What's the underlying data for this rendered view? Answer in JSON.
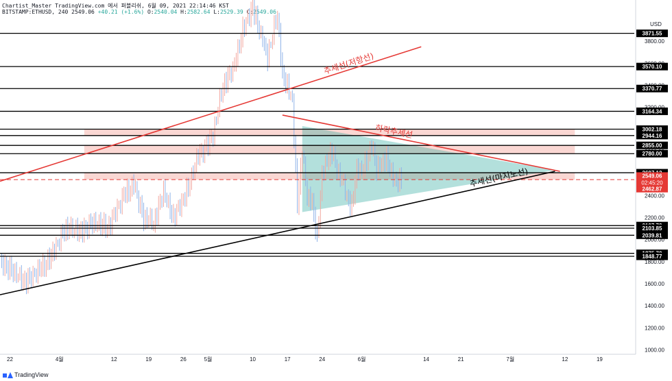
{
  "header": {
    "line1": "Chartist_Master TradingView.com 에서 퍼블리쉬, 6월 09, 2021 22:14:46 KST",
    "symbol": "BITSTAMP:ETHUSD, 240",
    "last": "2549.06",
    "change": "+40.21 (+1.6%)",
    "o_label": "O:",
    "o": "2540.04",
    "h_label": "H:",
    "h": "2582.64",
    "l_label": "L:",
    "l": "2529.39",
    "c_label": "C:",
    "c": "2549.06"
  },
  "footer": {
    "brand": "TradingView"
  },
  "chart_data": {
    "type": "candlestick",
    "currency": "USD",
    "ylim": [
      960,
      4000
    ],
    "yticks": [
      1000,
      1200,
      1400,
      1600,
      1800,
      2000,
      2200,
      2400,
      2600,
      2800,
      3000,
      3200,
      3400,
      3600,
      3800
    ],
    "ytick_labels": [
      "1000.00",
      "1200.00",
      "1400.00",
      "1600.00",
      "1800.00",
      "2000.00",
      "2200.00",
      "2400.00",
      "2600.00",
      "2800.00",
      "3000.00",
      "3200.00",
      "3400.00",
      "3600.00",
      "3800.00"
    ],
    "xlim": [
      "2021-03-20",
      "2021-07-26"
    ],
    "xticks": [
      {
        "date": "2021-03-22",
        "label": "22"
      },
      {
        "date": "2021-04-01",
        "label": "4월"
      },
      {
        "date": "2021-04-12",
        "label": "12"
      },
      {
        "date": "2021-04-19",
        "label": "19"
      },
      {
        "date": "2021-04-26",
        "label": "26"
      },
      {
        "date": "2021-05-01",
        "label": "5월"
      },
      {
        "date": "2021-05-10",
        "label": "10"
      },
      {
        "date": "2021-05-17",
        "label": "17"
      },
      {
        "date": "2021-05-24",
        "label": "24"
      },
      {
        "date": "2021-06-01",
        "label": "6월"
      },
      {
        "date": "2021-06-14",
        "label": "14"
      },
      {
        "date": "2021-06-21",
        "label": "21"
      },
      {
        "date": "2021-07-01",
        "label": "7월"
      },
      {
        "date": "2021-07-12",
        "label": "12"
      },
      {
        "date": "2021-07-19",
        "label": "19"
      }
    ],
    "price_series": [
      [
        "2021-03-20",
        1810
      ],
      [
        "2021-03-23",
        1700
      ],
      [
        "2021-03-25",
        1610
      ],
      [
        "2021-03-28",
        1720
      ],
      [
        "2021-03-31",
        1890
      ],
      [
        "2021-04-02",
        2100
      ],
      [
        "2021-04-05",
        2080
      ],
      [
        "2021-04-08",
        2150
      ],
      [
        "2021-04-11",
        2120
      ],
      [
        "2021-04-14",
        2400
      ],
      [
        "2021-04-16",
        2500
      ],
      [
        "2021-04-18",
        2200
      ],
      [
        "2021-04-20",
        2150
      ],
      [
        "2021-04-22",
        2450
      ],
      [
        "2021-04-24",
        2200
      ],
      [
        "2021-04-26",
        2350
      ],
      [
        "2021-04-29",
        2750
      ],
      [
        "2021-05-02",
        2950
      ],
      [
        "2021-05-04",
        3400
      ],
      [
        "2021-05-06",
        3550
      ],
      [
        "2021-05-08",
        3900
      ],
      [
        "2021-05-10",
        4100
      ],
      [
        "2021-05-12",
        3800
      ],
      [
        "2021-05-13",
        3650
      ],
      [
        "2021-05-15",
        4050
      ],
      [
        "2021-05-16",
        3500
      ],
      [
        "2021-05-17",
        3400
      ],
      [
        "2021-05-18",
        3250
      ],
      [
        "2021-05-19",
        2300
      ],
      [
        "2021-05-20",
        2800
      ],
      [
        "2021-05-21",
        2400
      ],
      [
        "2021-05-22",
        2350
      ],
      [
        "2021-05-23",
        2000
      ],
      [
        "2021-05-24",
        2600
      ],
      [
        "2021-05-25",
        2700
      ],
      [
        "2021-05-26",
        2800
      ],
      [
        "2021-05-27",
        2650
      ],
      [
        "2021-05-29",
        2400
      ],
      [
        "2021-05-30",
        2300
      ],
      [
        "2021-05-31",
        2650
      ],
      [
        "2021-06-01",
        2600
      ],
      [
        "2021-06-03",
        2850
      ],
      [
        "2021-06-04",
        2650
      ],
      [
        "2021-06-05",
        2700
      ],
      [
        "2021-06-06",
        2750
      ],
      [
        "2021-06-07",
        2600
      ],
      [
        "2021-06-08",
        2500
      ],
      [
        "2021-06-09",
        2549
      ]
    ],
    "horizontal_levels": [
      {
        "value": 3871.55,
        "label": "3871.55",
        "style": "solid"
      },
      {
        "value": 3570.1,
        "label": "3570.10",
        "style": "solid"
      },
      {
        "value": 3370.77,
        "label": "3370.77",
        "style": "solid"
      },
      {
        "value": 3164.34,
        "label": "3164.34",
        "style": "solid"
      },
      {
        "value": 3002.18,
        "label": "3002.18",
        "style": "solid"
      },
      {
        "value": 2944.16,
        "label": "2944.16",
        "style": "solid"
      },
      {
        "value": 2855.0,
        "label": "2855.00",
        "style": "solid"
      },
      {
        "value": 2780.0,
        "label": "2780.00",
        "style": "solid"
      },
      {
        "value": 2607.12,
        "label": "2607.12",
        "style": "solid"
      },
      {
        "value": 2544.29,
        "label": "2544.29",
        "style": "dashed-red"
      },
      {
        "value": 2462.87,
        "label": "2462.87",
        "style": "red-tag"
      },
      {
        "value": 2127.73,
        "label": "2127.73",
        "style": "solid"
      },
      {
        "value": 2103.85,
        "label": "2103.85",
        "style": "solid"
      },
      {
        "value": 2039.81,
        "label": "2039.81",
        "style": "solid"
      },
      {
        "value": 1875.7,
        "label": "1875.70",
        "style": "solid"
      },
      {
        "value": 1848.77,
        "label": "1848.77",
        "style": "solid"
      }
    ],
    "price_tag": {
      "value": 2549.06,
      "label": "2549.06",
      "countdown": "02:45:20"
    },
    "zones": [
      {
        "from": 2944.16,
        "to": 3002.18,
        "x1": "2021-04-06",
        "x2": "2021-07-14"
      },
      {
        "from": 2780.0,
        "to": 2855.0,
        "x1": "2021-04-06",
        "x2": "2021-07-14"
      },
      {
        "from": 2544.29,
        "to": 2607.12,
        "x1": "2021-04-06",
        "x2": "2021-07-14"
      }
    ],
    "triangle": [
      [
        "2021-05-20",
        3030
      ],
      [
        "2021-07-10",
        2630
      ],
      [
        "2021-05-20",
        2250
      ]
    ],
    "trendlines": [
      {
        "name": "resistance",
        "label": "추세선(저항선)",
        "color": "#e53935",
        "from": [
          "2021-03-20",
          2530
        ],
        "to": [
          "2021-06-13",
          3750
        ]
      },
      {
        "name": "falling",
        "label": "하락추세선",
        "color": "#e53935",
        "from": [
          "2021-05-16",
          3130
        ],
        "to": [
          "2021-07-11",
          2620
        ]
      },
      {
        "name": "support",
        "label": "추세선(마지노선)",
        "color": "#000000",
        "from": [
          "2021-03-20",
          1500
        ],
        "to": [
          "2021-07-10",
          2620
        ]
      }
    ]
  }
}
